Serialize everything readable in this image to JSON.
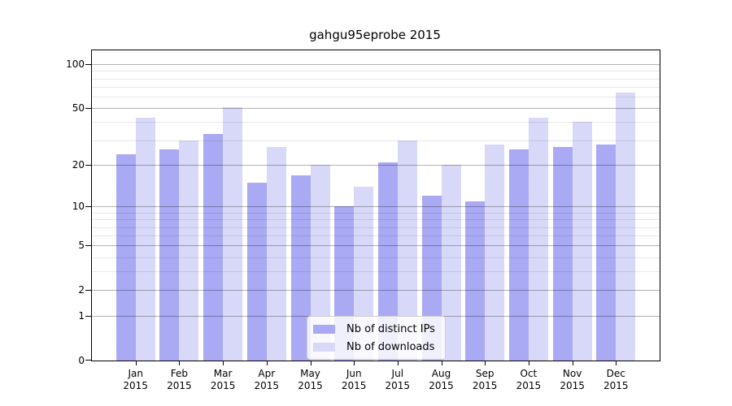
{
  "title": "gahgu95eprobe 2015",
  "chart_data": {
    "type": "bar",
    "title": "gahgu95eprobe 2015",
    "categories": [
      "Jan",
      "Feb",
      "Mar",
      "Apr",
      "May",
      "Jun",
      "Jul",
      "Aug",
      "Sep",
      "Oct",
      "Nov",
      "Dec"
    ],
    "year": "2015",
    "series": [
      {
        "name": "Nb of distinct IPs",
        "color": "#a9a9f4",
        "values": [
          24,
          26,
          33,
          15,
          17,
          10,
          21,
          12,
          11,
          26,
          27,
          28
        ]
      },
      {
        "name": "Nb of downloads",
        "color": "#d8d8f8",
        "values": [
          43,
          30,
          51,
          27,
          20,
          14,
          30,
          20,
          28,
          43,
          40,
          64
        ]
      }
    ],
    "y_axis": {
      "scale": "log10(v+1)",
      "major_ticks": [
        0,
        1,
        2,
        5,
        10,
        20,
        50,
        100
      ],
      "minor_ticks": [
        3,
        4,
        6,
        7,
        8,
        9,
        30,
        40,
        60,
        70,
        80,
        90
      ],
      "max": 124.5
    },
    "x_axis": {
      "label_line2": "2015"
    },
    "legend": {
      "position": "lower center"
    },
    "grid": {
      "major_color": "#b3b3b3",
      "minor_color": "#e8e8e8"
    }
  }
}
